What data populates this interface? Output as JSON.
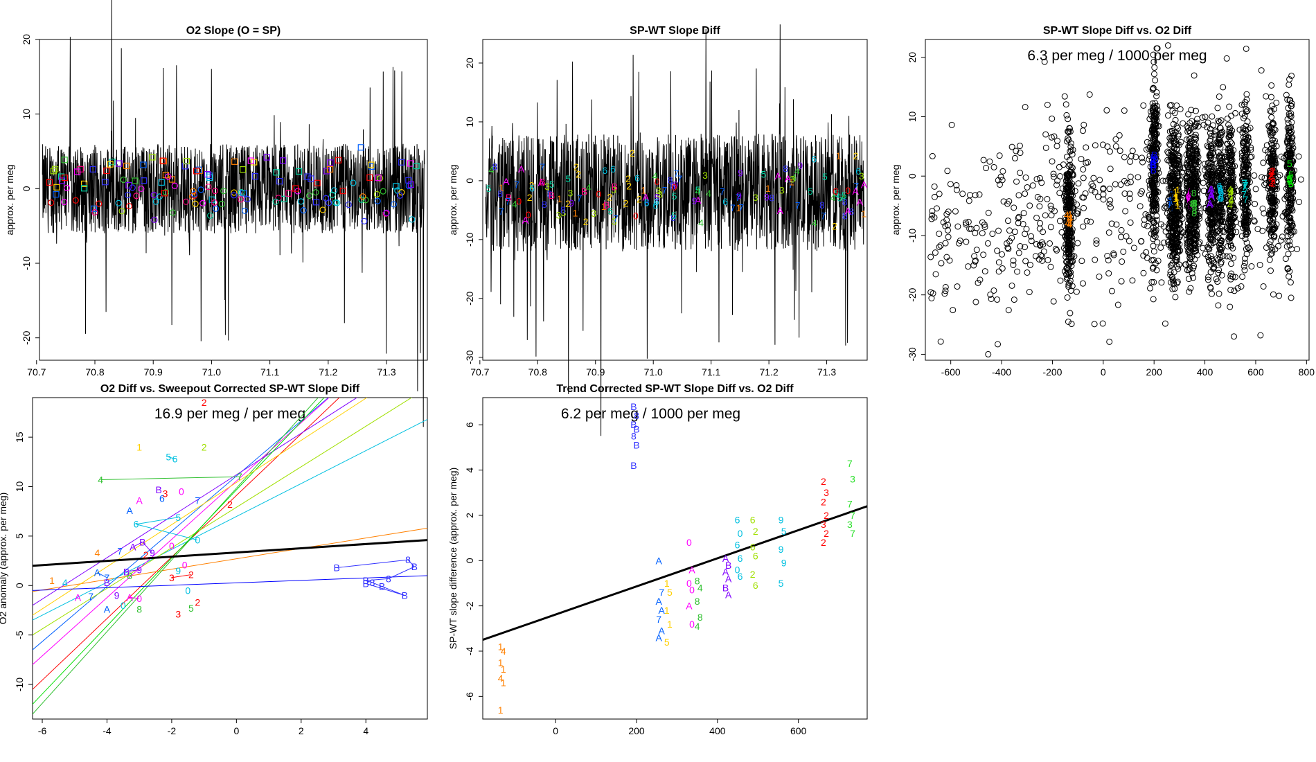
{
  "chart_data": [
    {
      "type": "line",
      "title": "O2 Slope (O = SP)",
      "xlabel": "",
      "ylabel": "approx. per meg",
      "xlim": [
        70.705,
        71.37
      ],
      "ylim": [
        -23,
        20
      ],
      "xticks": [
        "70.7",
        "70.8",
        "70.9",
        "71.0",
        "71.1",
        "71.2",
        "71.3"
      ],
      "xtick_values": [
        70.7,
        70.8,
        70.9,
        71.0,
        71.1,
        71.2,
        71.3
      ],
      "yticks": [
        "-20",
        "-10",
        "0",
        "10",
        "20"
      ],
      "ytick_values": [
        -20,
        -10,
        0,
        10,
        20
      ],
      "series": [
        {
          "name": "O2 slope trace",
          "noise_envelope": [
            -6,
            6
          ],
          "center": 0,
          "extreme_spikes": [
            -23,
            20
          ]
        },
        {
          "name": "cycle markers (squares)",
          "mean": 2
        },
        {
          "name": "cycle markers (circles)",
          "mean": -1.5
        }
      ]
    },
    {
      "type": "line",
      "title": "SP-WT Slope Diff",
      "xlabel": "",
      "ylabel": "approx. per meg",
      "xlim": [
        70.705,
        71.37
      ],
      "ylim": [
        -30.5,
        24
      ],
      "xticks": [
        "70.7",
        "70.8",
        "70.9",
        "71.0",
        "71.1",
        "71.2",
        "71.3"
      ],
      "xtick_values": [
        70.7,
        70.8,
        70.9,
        71.0,
        71.1,
        71.2,
        71.3
      ],
      "yticks": [
        "-30",
        "-20",
        "-10",
        "0",
        "10",
        "20"
      ],
      "ytick_values": [
        -30,
        -20,
        -10,
        0,
        10,
        20
      ],
      "series": [
        {
          "name": "SP-WT slope diff trace",
          "noise_envelope": [
            -11,
            9
          ],
          "center": -2,
          "extreme_spikes": [
            -30,
            22
          ]
        },
        {
          "name": "cycle labels",
          "labels": [
            "0",
            "1",
            "2",
            "3",
            "4",
            "5",
            "6",
            "7",
            "8",
            "9",
            "A",
            "B"
          ]
        }
      ]
    },
    {
      "type": "scatter",
      "title": "SP-WT Slope Diff vs. O2 Diff",
      "annotation": "6.3 per meg / 1000 per meg",
      "xlabel": "",
      "ylabel": "approx. per meg",
      "xlim": [
        -700,
        810
      ],
      "ylim": [
        -31,
        23
      ],
      "xticks": [
        "-600",
        "-400",
        "-200",
        "0",
        "200",
        "400",
        "600",
        "800"
      ],
      "xtick_values": [
        -600,
        -400,
        -200,
        0,
        200,
        400,
        600,
        800
      ],
      "yticks": [
        "-30",
        "-20",
        "-10",
        "0",
        "10",
        "20"
      ],
      "ytick_values": [
        -30,
        -20,
        -10,
        0,
        10,
        20
      ],
      "clusters": [
        {
          "x": -135,
          "label": "4",
          "color": "#ff8000",
          "mean": -7,
          "spread": 8
        },
        {
          "x": 200,
          "label": "B",
          "color": "#0000ff",
          "mean": 2,
          "spread": 9
        },
        {
          "x": 270,
          "label": "7",
          "color": "#0060ff",
          "mean": -4.5,
          "spread": 8
        },
        {
          "x": 290,
          "label": "1",
          "color": "#ffd000",
          "mean": -4,
          "spread": 8
        },
        {
          "x": 340,
          "label": "0",
          "color": "#ff00ff",
          "mean": -4,
          "spread": 8
        },
        {
          "x": 360,
          "label": "8",
          "color": "#30c030",
          "mean": -4.5,
          "spread": 8
        },
        {
          "x": 425,
          "label": "A",
          "color": "#8000ff",
          "mean": -3.5,
          "spread": 8
        },
        {
          "x": 460,
          "label": "6",
          "color": "#00c0e0",
          "mean": -2.5,
          "spread": 8
        },
        {
          "x": 500,
          "label": "4",
          "color": "#a0e000",
          "mean": -3,
          "spread": 8
        },
        {
          "x": 560,
          "label": "7",
          "color": "#00d0d0",
          "mean": -1.5,
          "spread": 8
        },
        {
          "x": 665,
          "label": "2",
          "color": "#ff0000",
          "mean": -0.5,
          "spread": 8
        },
        {
          "x": 735,
          "label": "5",
          "color": "#00e000",
          "mean": -0.5,
          "spread": 8
        }
      ],
      "fit_slope": "6.3 per meg / 1000 per meg"
    },
    {
      "type": "scatter",
      "title": "O2 Diff vs. Sweepout Corrected SP-WT Slope Diff",
      "annotation": "16.9 per meg / per meg",
      "xlabel": "",
      "ylabel": "O2 anomaly (approx. per meg)",
      "xlim": [
        -6.3,
        5.9
      ],
      "ylim": [
        -13.5,
        19
      ],
      "xticks": [
        "-6",
        "-4",
        "-2",
        "0",
        "2",
        "4"
      ],
      "xtick_values": [
        -6,
        -4,
        -2,
        0,
        2,
        4
      ],
      "yticks": [
        "-10",
        "-5",
        "0",
        "5",
        "10",
        "15"
      ],
      "ytick_values": [
        -10,
        -5,
        0,
        5,
        10,
        15
      ],
      "overall_fit": {
        "x": [
          -6.3,
          5.9
        ],
        "y": [
          2.0,
          4.6
        ]
      },
      "cycle_fit_lines": [
        {
          "color": "#ff0000",
          "x": [
            -6.3,
            3.5
          ],
          "y": [
            -10.5,
            20
          ]
        },
        {
          "color": "#ff8000",
          "x": [
            -6.3,
            5.9
          ],
          "y": [
            -0.6,
            5.8
          ]
        },
        {
          "color": "#00c0e0",
          "x": [
            -6.3,
            5.9
          ],
          "y": [
            -3.5,
            16.8
          ]
        },
        {
          "color": "#0060ff",
          "x": [
            -6.3,
            3.2
          ],
          "y": [
            -6.5,
            20
          ]
        },
        {
          "color": "#a0e000",
          "x": [
            -6.3,
            5.9
          ],
          "y": [
            -5.0,
            20
          ]
        },
        {
          "color": "#ff00ff",
          "x": [
            -6.3,
            3.2
          ],
          "y": [
            -8.0,
            20
          ]
        },
        {
          "color": "#30c030",
          "x": [
            -6.3,
            2.8
          ],
          "y": [
            -13.0,
            20
          ]
        },
        {
          "color": "#8000ff",
          "x": [
            -6.3,
            4.2
          ],
          "y": [
            -2.0,
            20
          ]
        },
        {
          "color": "#00e000",
          "x": [
            -6.3,
            3.0
          ],
          "y": [
            -12.0,
            20
          ]
        },
        {
          "color": "#ffd000",
          "x": [
            -6.3,
            4.5
          ],
          "y": [
            -3.0,
            20
          ]
        },
        {
          "color": "#0000ff",
          "x": [
            -6.3,
            5.9
          ],
          "y": [
            -0.5,
            1.0
          ]
        }
      ],
      "points": [
        {
          "label": "B",
          "x": 3.1,
          "y": 1.8,
          "color": "#3030ff"
        },
        {
          "label": "8",
          "x": 5.3,
          "y": 2.6,
          "color": "#3030ff"
        },
        {
          "label": "B",
          "x": 5.5,
          "y": 1.9,
          "color": "#3030ff"
        },
        {
          "label": "8",
          "x": 4.7,
          "y": 0.7,
          "color": "#3030ff"
        },
        {
          "label": "B",
          "x": 4.0,
          "y": 0.5,
          "color": "#3030ff"
        },
        {
          "label": "8",
          "x": 4.2,
          "y": 0.3,
          "color": "#3030ff"
        },
        {
          "label": "B",
          "x": 4.5,
          "y": -0.1,
          "color": "#3030ff"
        },
        {
          "label": "B",
          "x": 5.2,
          "y": -1.0,
          "color": "#3030ff"
        },
        {
          "label": "B",
          "x": 4.0,
          "y": 0.2,
          "color": "#3030ff"
        },
        {
          "label": "2",
          "x": -1.0,
          "y": 18.5,
          "color": "#ff0000"
        },
        {
          "label": "1",
          "x": -3.0,
          "y": 14.0,
          "color": "#ffd000"
        },
        {
          "label": "5",
          "x": -2.1,
          "y": 13.0,
          "color": "#00c0e0"
        },
        {
          "label": "6",
          "x": -1.9,
          "y": 12.8,
          "color": "#00c0e0"
        },
        {
          "label": "2",
          "x": -1.0,
          "y": 14.0,
          "color": "#a0e000"
        },
        {
          "label": "4",
          "x": -4.2,
          "y": 10.7,
          "color": "#30c030"
        },
        {
          "label": "7",
          "x": 0.1,
          "y": 11.0,
          "color": "#30c030"
        },
        {
          "label": "B",
          "x": -2.4,
          "y": 9.7,
          "color": "#8000ff"
        },
        {
          "label": "6",
          "x": -2.3,
          "y": 8.8,
          "color": "#0060ff"
        },
        {
          "label": "3",
          "x": -2.2,
          "y": 9.3,
          "color": "#ff0000"
        },
        {
          "label": "0",
          "x": -1.7,
          "y": 9.5,
          "color": "#ff00ff"
        },
        {
          "label": "7",
          "x": -1.2,
          "y": 8.6,
          "color": "#0060ff"
        },
        {
          "label": "2",
          "x": -0.2,
          "y": 8.2,
          "color": "#ff0000"
        },
        {
          "label": "A",
          "x": -3.0,
          "y": 8.6,
          "color": "#ff00ff"
        },
        {
          "label": "A",
          "x": -3.3,
          "y": 7.6,
          "color": "#0060ff"
        },
        {
          "label": "5",
          "x": -1.8,
          "y": 6.9,
          "color": "#00c0e0"
        },
        {
          "label": "6",
          "x": -3.1,
          "y": 6.2,
          "color": "#00c0e0"
        },
        {
          "label": "0",
          "x": -1.2,
          "y": 4.6,
          "color": "#00c0e0"
        },
        {
          "label": "4",
          "x": -4.3,
          "y": 3.3,
          "color": "#ff8000"
        },
        {
          "label": "7",
          "x": -3.6,
          "y": 3.5,
          "color": "#0060ff"
        },
        {
          "label": "A",
          "x": -3.2,
          "y": 3.9,
          "color": "#8000ff"
        },
        {
          "label": "B",
          "x": -2.9,
          "y": 4.4,
          "color": "#8000ff"
        },
        {
          "label": "9",
          "x": -2.6,
          "y": 3.3,
          "color": "#8000ff"
        },
        {
          "label": "0",
          "x": -2.0,
          "y": 4.0,
          "color": "#ff00ff"
        },
        {
          "label": "2",
          "x": -2.8,
          "y": 3.1,
          "color": "#ff0000"
        },
        {
          "label": "0",
          "x": -1.6,
          "y": 2.1,
          "color": "#ff00ff"
        },
        {
          "label": "1",
          "x": -5.7,
          "y": 0.5,
          "color": "#ff8000"
        },
        {
          "label": "4",
          "x": -5.3,
          "y": 0.3,
          "color": "#00c0e0"
        },
        {
          "label": "A",
          "x": -4.3,
          "y": 1.3,
          "color": "#0060ff"
        },
        {
          "label": "7",
          "x": -4.0,
          "y": 0.8,
          "color": "#0060ff"
        },
        {
          "label": "B",
          "x": -4.0,
          "y": 0.3,
          "color": "#8000ff"
        },
        {
          "label": "8",
          "x": -3.3,
          "y": 1.0,
          "color": "#30c030"
        },
        {
          "label": "B",
          "x": -3.4,
          "y": 1.4,
          "color": "#8000ff"
        },
        {
          "label": "9",
          "x": -3.0,
          "y": 1.6,
          "color": "#8000ff"
        },
        {
          "label": "3",
          "x": -2.0,
          "y": 0.8,
          "color": "#ff0000"
        },
        {
          "label": "2",
          "x": -1.4,
          "y": 1.1,
          "color": "#ff0000"
        },
        {
          "label": "9",
          "x": -1.8,
          "y": 1.5,
          "color": "#00c0e0"
        },
        {
          "label": "A",
          "x": -4.9,
          "y": -1.2,
          "color": "#ff00ff"
        },
        {
          "label": "7",
          "x": -4.5,
          "y": -1.1,
          "color": "#0060ff"
        },
        {
          "label": "9",
          "x": -3.7,
          "y": -1.0,
          "color": "#8000ff"
        },
        {
          "label": "A",
          "x": -3.3,
          "y": -1.2,
          "color": "#ff00ff"
        },
        {
          "label": "0",
          "x": -3.0,
          "y": -1.3,
          "color": "#ff00ff"
        },
        {
          "label": "A",
          "x": -4.0,
          "y": -2.4,
          "color": "#0060ff"
        },
        {
          "label": "0",
          "x": -3.5,
          "y": -2.0,
          "color": "#00c0e0"
        },
        {
          "label": "8",
          "x": -3.0,
          "y": -2.4,
          "color": "#30c030"
        },
        {
          "label": "0",
          "x": -1.5,
          "y": -0.5,
          "color": "#00c0e0"
        },
        {
          "label": "3",
          "x": -1.8,
          "y": -2.9,
          "color": "#ff0000"
        },
        {
          "label": "5",
          "x": -1.4,
          "y": -2.3,
          "color": "#30c030"
        },
        {
          "label": "2",
          "x": -1.2,
          "y": -1.7,
          "color": "#ff0000"
        }
      ]
    },
    {
      "type": "scatter",
      "title": "Trend Corrected SP-WT Slope Diff vs. O2 Diff",
      "annotation": "6.2 per meg / 1000 per meg",
      "xlabel": "",
      "ylabel": "SP-WT slope difference (approx. per meg)",
      "xlim": [
        -180,
        770
      ],
      "ylim": [
        -7,
        7.2
      ],
      "xticks": [
        "0",
        "200",
        "400",
        "600"
      ],
      "xtick_values": [
        0,
        200,
        400,
        600
      ],
      "yticks": [
        "-6",
        "-4",
        "-2",
        "0",
        "2",
        "4",
        "6"
      ],
      "ytick_values": [
        -6,
        -4,
        -2,
        0,
        2,
        4,
        6
      ],
      "fit_line": {
        "x": [
          -180,
          770
        ],
        "y": [
          -3.5,
          2.4
        ]
      },
      "clusters": [
        {
          "x": -133,
          "label": "1",
          "color": "#ff8000",
          "values": [
            -3.8,
            -4.0,
            -4.5,
            -4.8,
            -5.2,
            -5.4,
            -6.6
          ],
          "alt_label": "4"
        },
        {
          "x": 196,
          "label": "B",
          "color": "#3030ff",
          "values": [
            6.8,
            6.4,
            6.0,
            5.8,
            5.5,
            5.1,
            4.2
          ],
          "alt_label": "8"
        },
        {
          "x": 258,
          "label": "A",
          "color": "#0060ff",
          "values": [
            0,
            -1.4,
            -1.8,
            -2.2,
            -2.6,
            -3.1,
            -3.4
          ],
          "alt_label": "7"
        },
        {
          "x": 278,
          "label": "1",
          "color": "#ffd000",
          "values": [
            -1.0,
            -1.4,
            -2.2,
            -2.8,
            -3.6
          ],
          "alt_label": "5"
        },
        {
          "x": 333,
          "label": "0",
          "color": "#ff00ff",
          "values": [
            0.8,
            -0.4,
            -1.0,
            -1.3,
            -2.0,
            -2.8
          ],
          "alt_label": "A"
        },
        {
          "x": 353,
          "label": "8",
          "color": "#30c030",
          "values": [
            -0.9,
            -1.2,
            -1.8,
            -2.5,
            -2.9
          ],
          "alt_label": "4"
        },
        {
          "x": 423,
          "label": "A",
          "color": "#8000ff",
          "values": [
            0.1,
            -0.2,
            -0.5,
            -0.8,
            -1.2,
            -1.5
          ],
          "alt_label": "B"
        },
        {
          "x": 452,
          "label": "6",
          "color": "#00c0e0",
          "values": [
            1.8,
            1.2,
            0.7,
            0.1,
            -0.4,
            -0.7
          ],
          "alt_label": "0"
        },
        {
          "x": 490,
          "label": "6",
          "color": "#a0e000",
          "values": [
            1.8,
            1.3,
            0.6,
            0.2,
            -0.6,
            -1.1
          ],
          "alt_label": "2"
        },
        {
          "x": 560,
          "label": "9",
          "color": "#00c0e0",
          "values": [
            1.8,
            1.3,
            0.5,
            -0.1,
            -1.0
          ],
          "alt_label": "5"
        },
        {
          "x": 665,
          "label": "2",
          "color": "#ff0000",
          "values": [
            3.5,
            3.0,
            2.6,
            2.0,
            1.6,
            1.2,
            0.8
          ],
          "alt_label": "3"
        },
        {
          "x": 730,
          "label": "7",
          "color": "#30e030",
          "values": [
            4.3,
            3.6,
            2.5,
            2.0,
            1.6,
            1.2
          ],
          "alt_label": "3"
        }
      ],
      "fit_slope": "6.2 per meg / 1000 per meg"
    }
  ]
}
